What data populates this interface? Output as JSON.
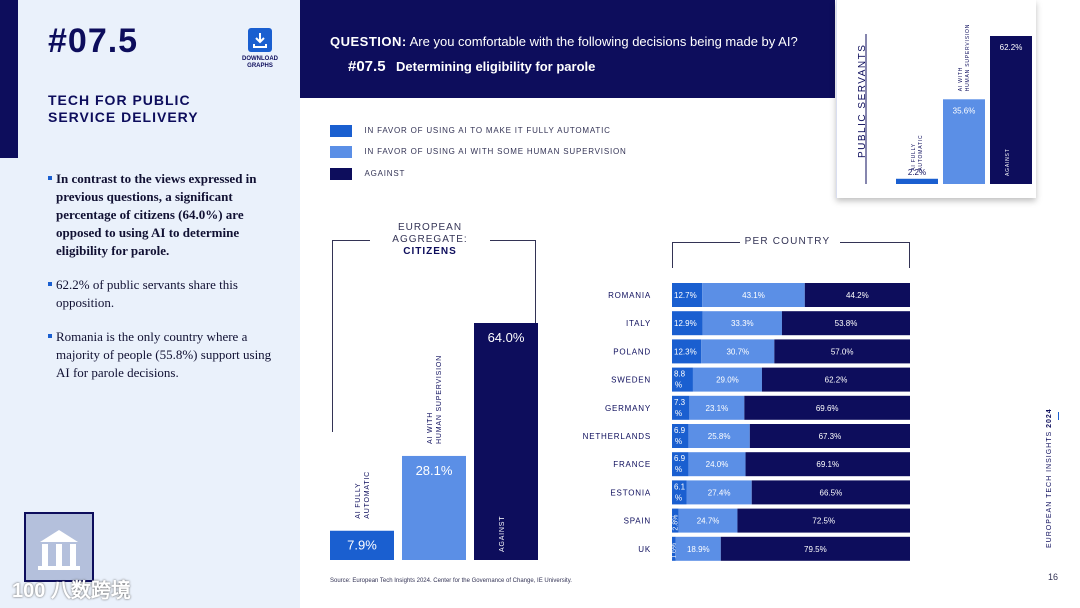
{
  "header": {
    "page_number": "#07.5",
    "download_label_1": "DOWNLOAD",
    "download_label_2": "GRAPHS",
    "section_title": "TECH FOR PUBLIC SERVICE DELIVERY",
    "question_label": "QUESTION:",
    "question_text": "Are you comfortable with the following decisions being made by AI?",
    "subquestion_number": "#07.5",
    "subquestion_text": "Determining eligibility for parole"
  },
  "bullets": [
    "In contrast to the views expressed in previous questions, a significant percentage of citizens (64.0%) are opposed to using AI to determine eligibility for parole.",
    "62.2% of public servants share this opposition.",
    "Romania is the only country where a majority of people (55.8%) support using AI for parole decisions."
  ],
  "watermark": "100 八数跨境",
  "legend": [
    {
      "label": "IN FAVOR OF USING AI TO MAKE IT FULLY AUTOMATIC",
      "color": "#1a5fd0"
    },
    {
      "label": "IN FAVOR OF USING AI WITH SOME HUMAN SUPERVISION",
      "color": "#5b8fe6"
    },
    {
      "label": "AGAINST",
      "color": "#0d0d5c"
    }
  ],
  "public_servants_title": "PUBLIC SERVANTS",
  "aggregate_title_1": "EUROPEAN",
  "aggregate_title_2": "AGGREGATE:",
  "aggregate_title_3": "CITIZENS",
  "per_country_title": "PER COUNTRY",
  "colors": {
    "automatic": "#1a5fd0",
    "supervision": "#5b8fe6",
    "against": "#0d0d5c"
  },
  "chart_data": [
    {
      "id": "public_servants",
      "type": "bar",
      "title": "PUBLIC SERVANTS",
      "categories": [
        "AI FULLY AUTOMATIC",
        "AI WITH HUMAN SUPERVISION",
        "AGAINST"
      ],
      "values": [
        2.2,
        35.6,
        62.2
      ],
      "value_labels": [
        "2.2%",
        "35.6%",
        "62.2%"
      ],
      "ylim": [
        0,
        62.2
      ]
    },
    {
      "id": "european_aggregate",
      "type": "bar",
      "title": "EUROPEAN AGGREGATE: CITIZENS",
      "categories": [
        "AI FULLY AUTOMATIC",
        "AI WITH HUMAN SUPERVISION",
        "AGAINST"
      ],
      "values": [
        7.9,
        28.1,
        64.0
      ],
      "value_labels": [
        "7.9%",
        "28.1%",
        "64.0%"
      ],
      "ylim": [
        0,
        64.0
      ]
    },
    {
      "id": "per_country",
      "type": "bar",
      "stacked": true,
      "orientation": "horizontal",
      "title": "PER COUNTRY",
      "categories": [
        "ROMANIA",
        "ITALY",
        "POLAND",
        "SWEDEN",
        "GERMANY",
        "NETHERLANDS",
        "FRANCE",
        "ESTONIA",
        "SPAIN",
        "UK"
      ],
      "series": [
        {
          "name": "IN FAVOR OF USING AI TO MAKE IT FULLY AUTOMATIC",
          "values": [
            12.7,
            12.9,
            12.3,
            8.8,
            7.3,
            6.9,
            6.9,
            6.1,
            2.8,
            1.6
          ],
          "labels": [
            "12.7%",
            "12.9%",
            "12.3%",
            "8.8 %",
            "7.3 %",
            "6.9 %",
            "6.9 %",
            "6.1 %",
            "2.8%",
            "1.6%"
          ]
        },
        {
          "name": "IN FAVOR OF USING AI WITH SOME HUMAN SUPERVISION",
          "values": [
            43.1,
            33.3,
            30.7,
            29.0,
            23.1,
            25.8,
            24.0,
            27.4,
            24.7,
            18.9
          ],
          "labels": [
            "43.1%",
            "33.3%",
            "30.7%",
            "29.0%",
            "23.1%",
            "25.8%",
            "24.0%",
            "27.4%",
            "24.7%",
            "18.9%"
          ]
        },
        {
          "name": "AGAINST",
          "values": [
            44.2,
            53.8,
            57.0,
            62.2,
            69.6,
            67.3,
            69.1,
            66.5,
            72.5,
            79.5
          ],
          "labels": [
            "44.2%",
            "53.8%",
            "57.0%",
            "62.2%",
            "69.6%",
            "67.3%",
            "69.1%",
            "66.5%",
            "72.5%",
            "79.5%"
          ]
        }
      ],
      "xlim": [
        0,
        100
      ]
    }
  ],
  "source": "Source: European Tech Insights 2024. Center for the Governance of Change, IE University.",
  "side_label_1": "EUROPEAN TECH INSIGHTS",
  "side_label_2": "2024",
  "page_num": "16"
}
